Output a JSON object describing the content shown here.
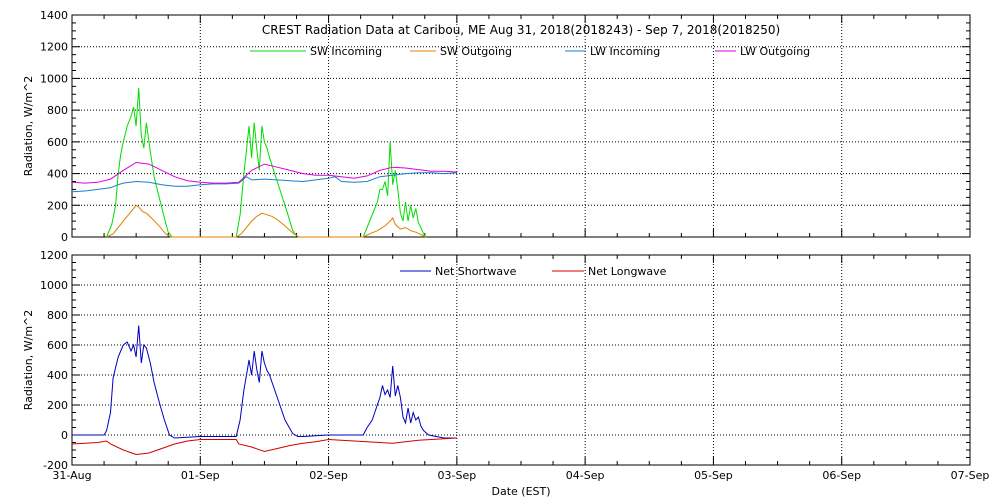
{
  "chart_data": [
    {
      "type": "line",
      "title": "CREST Radiation Data at Caribou, ME   Aug 31, 2018(2018243) - Sep  7, 2018(2018250)",
      "xlabel": "",
      "ylabel": "Radiation, W/m^2",
      "xlim": [
        0,
        7
      ],
      "ylim": [
        0,
        1400
      ],
      "yticks": [
        0,
        200,
        400,
        600,
        800,
        1000,
        1200,
        1400
      ],
      "grid": true,
      "legend_position": "top",
      "series": [
        {
          "name": "SW Incoming",
          "color": "#00dd00",
          "x": [
            0.27,
            0.31,
            0.34,
            0.36,
            0.38,
            0.4,
            0.43,
            0.46,
            0.48,
            0.5,
            0.52,
            0.54,
            0.56,
            0.58,
            0.61,
            0.64,
            0.68,
            0.72,
            0.75,
            0.78,
            1.0,
            1.28,
            1.31,
            1.34,
            1.36,
            1.38,
            1.4,
            1.42,
            1.44,
            1.46,
            1.48,
            1.5,
            1.52,
            1.54,
            1.56,
            1.58,
            1.62,
            1.68,
            1.72,
            1.76,
            1.78,
            2.0,
            2.27,
            2.3,
            2.34,
            2.38,
            2.4,
            2.42,
            2.44,
            2.46,
            2.48,
            2.5,
            2.52,
            2.54,
            2.56,
            2.58,
            2.6,
            2.62,
            2.64,
            2.66,
            2.68,
            2.7,
            2.72,
            2.74,
            2.76
          ],
          "values": [
            0,
            80,
            200,
            400,
            520,
            600,
            700,
            760,
            820,
            700,
            940,
            640,
            560,
            720,
            540,
            380,
            250,
            120,
            30,
            0,
            0,
            0,
            140,
            400,
            550,
            700,
            500,
            720,
            560,
            420,
            700,
            600,
            560,
            500,
            450,
            400,
            300,
            150,
            40,
            0,
            0,
            0,
            0,
            60,
            140,
            220,
            300,
            300,
            350,
            260,
            600,
            330,
            420,
            300,
            150,
            100,
            220,
            100,
            200,
            120,
            180,
            90,
            60,
            20,
            0
          ]
        },
        {
          "name": "SW Outgoing",
          "color": "#e08000",
          "x": [
            0.27,
            0.32,
            0.36,
            0.4,
            0.44,
            0.48,
            0.5,
            0.52,
            0.55,
            0.58,
            0.62,
            0.68,
            0.73,
            0.77,
            1.0,
            1.28,
            1.32,
            1.36,
            1.4,
            1.44,
            1.48,
            1.52,
            1.56,
            1.6,
            1.66,
            1.72,
            1.77,
            2.0,
            2.27,
            2.32,
            2.38,
            2.44,
            2.48,
            2.5,
            2.52,
            2.56,
            2.6,
            2.64,
            2.68,
            2.72,
            2.76
          ],
          "values": [
            0,
            20,
            60,
            100,
            140,
            180,
            200,
            190,
            160,
            150,
            120,
            70,
            20,
            0,
            0,
            0,
            20,
            60,
            100,
            130,
            150,
            140,
            130,
            110,
            70,
            25,
            0,
            0,
            0,
            20,
            40,
            70,
            100,
            120,
            80,
            50,
            60,
            40,
            30,
            15,
            0
          ]
        },
        {
          "name": "LW Incoming",
          "color": "#1a7fd0",
          "x": [
            0.0,
            0.1,
            0.2,
            0.3,
            0.36,
            0.4,
            0.5,
            0.6,
            0.7,
            0.8,
            0.9,
            1.0,
            1.1,
            1.2,
            1.3,
            1.36,
            1.4,
            1.5,
            1.6,
            1.7,
            1.8,
            1.9,
            2.0,
            2.05,
            2.1,
            2.2,
            2.3,
            2.4,
            2.5,
            2.6,
            2.7,
            2.8,
            2.9,
            3.0
          ],
          "values": [
            285,
            290,
            300,
            310,
            330,
            340,
            350,
            345,
            330,
            320,
            320,
            330,
            335,
            335,
            340,
            380,
            360,
            365,
            360,
            355,
            350,
            360,
            370,
            380,
            350,
            345,
            350,
            380,
            390,
            400,
            405,
            405,
            400,
            405
          ]
        },
        {
          "name": "LW Outgoing",
          "color": "#e000e0",
          "x": [
            0.0,
            0.1,
            0.2,
            0.3,
            0.4,
            0.5,
            0.6,
            0.7,
            0.8,
            0.9,
            1.0,
            1.1,
            1.2,
            1.3,
            1.4,
            1.5,
            1.6,
            1.7,
            1.8,
            1.9,
            2.0,
            2.1,
            2.2,
            2.3,
            2.4,
            2.5,
            2.6,
            2.7,
            2.8,
            2.9,
            3.0
          ],
          "values": [
            345,
            340,
            345,
            365,
            420,
            470,
            460,
            420,
            380,
            355,
            345,
            340,
            340,
            345,
            420,
            460,
            440,
            420,
            400,
            390,
            390,
            380,
            370,
            385,
            420,
            440,
            435,
            425,
            415,
            415,
            410
          ]
        }
      ]
    },
    {
      "type": "line",
      "title": "",
      "xlabel": "Date (EST)",
      "ylabel": "Radiation, W/m^2",
      "xlim": [
        0,
        7
      ],
      "ylim": [
        -200,
        1200
      ],
      "yticks": [
        -200,
        0,
        200,
        400,
        600,
        800,
        1000,
        1200
      ],
      "categories": [
        "31-Aug",
        "01-Sep",
        "02-Sep",
        "03-Sep",
        "04-Sep",
        "05-Sep",
        "06-Sep",
        "07-Sep"
      ],
      "grid": true,
      "legend_position": "top",
      "series": [
        {
          "name": "Net Shortwave",
          "color": "#0000c0",
          "x": [
            0.0,
            0.25,
            0.27,
            0.3,
            0.32,
            0.34,
            0.36,
            0.38,
            0.4,
            0.43,
            0.46,
            0.48,
            0.5,
            0.52,
            0.54,
            0.56,
            0.58,
            0.61,
            0.64,
            0.68,
            0.72,
            0.76,
            0.8,
            1.0,
            1.28,
            1.31,
            1.34,
            1.36,
            1.38,
            1.4,
            1.42,
            1.44,
            1.46,
            1.48,
            1.5,
            1.52,
            1.54,
            1.56,
            1.6,
            1.66,
            1.72,
            1.76,
            1.8,
            2.0,
            2.27,
            2.3,
            2.34,
            2.38,
            2.4,
            2.42,
            2.44,
            2.46,
            2.48,
            2.5,
            2.52,
            2.54,
            2.56,
            2.58,
            2.6,
            2.62,
            2.64,
            2.66,
            2.68,
            2.7,
            2.72,
            2.74,
            2.78,
            2.9,
            3.0
          ],
          "values": [
            0,
            0,
            30,
            150,
            380,
            450,
            520,
            560,
            600,
            620,
            560,
            600,
            520,
            730,
            480,
            600,
            580,
            480,
            350,
            220,
            100,
            0,
            -20,
            -10,
            -10,
            100,
            300,
            400,
            500,
            400,
            560,
            440,
            350,
            560,
            480,
            430,
            400,
            350,
            250,
            100,
            10,
            -10,
            -10,
            0,
            0,
            50,
            100,
            200,
            250,
            330,
            270,
            300,
            250,
            460,
            260,
            330,
            250,
            120,
            80,
            180,
            80,
            150,
            100,
            120,
            60,
            30,
            0,
            -20,
            -20
          ]
        },
        {
          "name": "Net Longwave",
          "color": "#d00000",
          "x": [
            0.0,
            0.1,
            0.2,
            0.27,
            0.3,
            0.4,
            0.5,
            0.6,
            0.7,
            0.8,
            0.9,
            1.0,
            1.1,
            1.2,
            1.28,
            1.3,
            1.4,
            1.5,
            1.6,
            1.7,
            1.8,
            1.9,
            2.0,
            2.1,
            2.2,
            2.3,
            2.4,
            2.5,
            2.6,
            2.7,
            2.8,
            2.9,
            3.0
          ],
          "values": [
            -60,
            -55,
            -50,
            -40,
            -60,
            -100,
            -130,
            -120,
            -90,
            -60,
            -40,
            -30,
            -30,
            -30,
            -30,
            -60,
            -80,
            -110,
            -90,
            -70,
            -55,
            -45,
            -30,
            -35,
            -40,
            -45,
            -50,
            -55,
            -45,
            -35,
            -30,
            -25,
            -20
          ]
        }
      ]
    }
  ]
}
